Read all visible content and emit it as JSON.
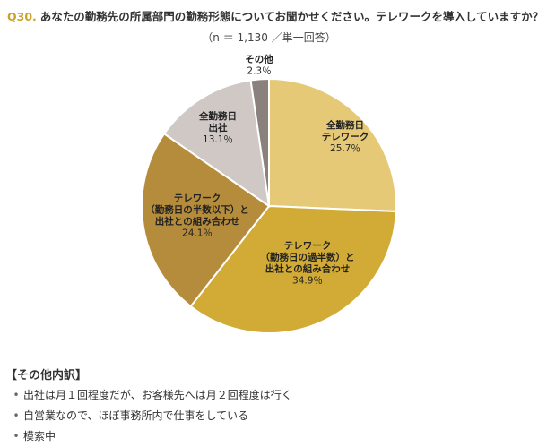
{
  "question": {
    "number": "Q30.",
    "text": "あなたの勤務先の所属部門の勤務形態についてお聞かせください。テレワークを導入していますか？"
  },
  "subtitle": "（n ＝ 1,130 ／単一回答）",
  "chart_data": {
    "type": "pie",
    "slices": [
      {
        "label": [
          "全勤務日",
          "テレワーク"
        ],
        "value": 25.7,
        "value_label": "25.7％",
        "color": "#e5c977"
      },
      {
        "label": [
          "テレワーク",
          "（勤務日の過半数）と",
          "出社との組み合わせ"
        ],
        "value": 34.9,
        "value_label": "34.9％",
        "color": "#d1ab35"
      },
      {
        "label": [
          "テレワーク",
          "（勤務日の半数以下）と",
          "出社との組み合わせ"
        ],
        "value": 24.1,
        "value_label": "24.1％",
        "color": "#b58c3c"
      },
      {
        "label": [
          "全勤務日",
          "出社"
        ],
        "value": 13.1,
        "value_label": "13.1％",
        "color": "#cfc8c4"
      },
      {
        "label": [
          "その他"
        ],
        "value": 2.3,
        "value_label": "2.3％",
        "color": "#8a817c"
      }
    ]
  },
  "notes": {
    "title": "【その他内訳】",
    "bullet": "•",
    "items": [
      "出社は月１回程度だが、お客様先へは月２回程度は行く",
      "自営業なので、ほぼ事務所内で仕事をしている",
      "模索中"
    ]
  }
}
